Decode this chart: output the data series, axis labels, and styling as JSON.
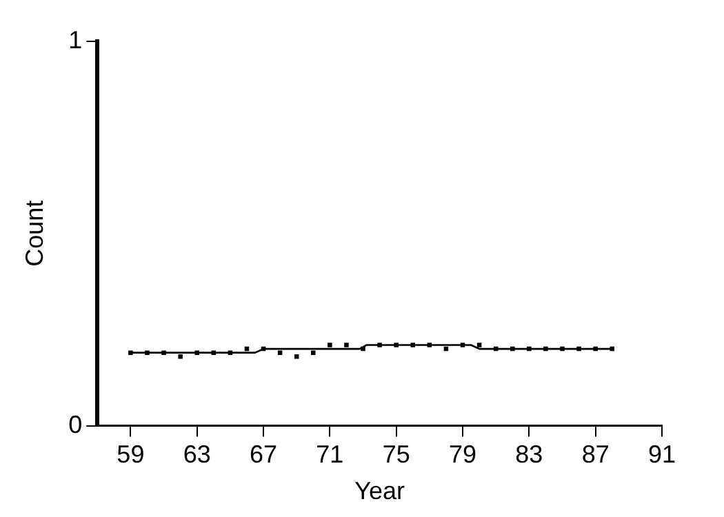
{
  "chart_data": {
    "type": "scatter",
    "xlabel": "Year",
    "ylabel": "Count",
    "xlim": [
      57,
      91
    ],
    "xticks": [
      59,
      63,
      67,
      71,
      75,
      79,
      83,
      87,
      91
    ],
    "ylim": [
      0,
      1
    ],
    "yticks": [
      0,
      1
    ],
    "grid": false,
    "legend": false,
    "marker": "square",
    "series": [
      {
        "color": "#000000",
        "x": [
          59,
          60,
          61,
          62,
          63,
          64,
          65,
          66,
          67,
          68,
          69,
          70,
          71,
          72,
          73,
          74,
          75,
          76,
          77,
          78,
          79,
          80,
          81,
          82,
          83,
          84,
          85,
          86,
          87,
          88
        ],
        "values": [
          0.19,
          0.19,
          0.19,
          0.18,
          0.19,
          0.19,
          0.19,
          0.2,
          0.2,
          0.19,
          0.18,
          0.19,
          0.21,
          0.21,
          0.2,
          0.21,
          0.21,
          0.21,
          0.21,
          0.2,
          0.21,
          0.21,
          0.2,
          0.2,
          0.2,
          0.2,
          0.2,
          0.2,
          0.2,
          0.2
        ]
      },
      {
        "type": "line",
        "color": "#000000",
        "line_style": "solid",
        "marker": "none",
        "x": [
          59,
          66.5,
          67,
          72.8,
          73.2,
          79.5,
          80,
          88
        ],
        "values": [
          0.19,
          0.19,
          0.2,
          0.2,
          0.21,
          0.21,
          0.2,
          0.2
        ]
      }
    ]
  }
}
